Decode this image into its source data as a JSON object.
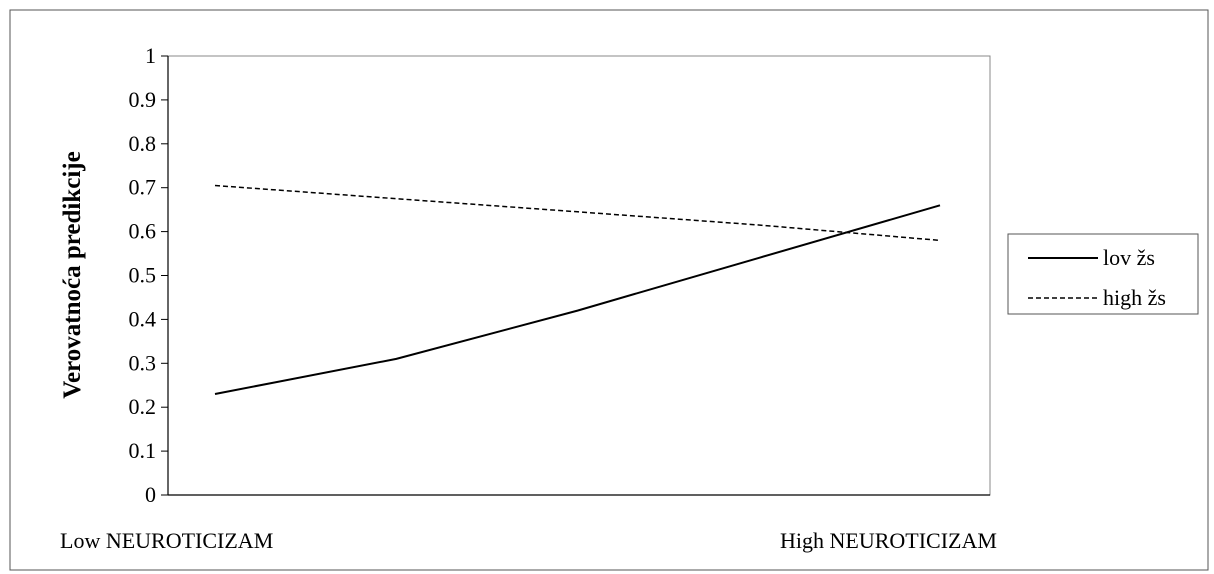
{
  "chart_data": {
    "type": "line",
    "title": "",
    "xlabel": "",
    "ylabel": "Verovatnoća predikcije",
    "ylim": [
      0,
      1
    ],
    "y_ticks": [
      "0",
      "0.1",
      "0.2",
      "0.3",
      "0.4",
      "0.5",
      "0.6",
      "0.7",
      "0.8",
      "0.9",
      "1"
    ],
    "categories": [
      "Low NEUROTICIZAM",
      "High NEUROTICIZAM"
    ],
    "x": [
      0,
      0.25,
      0.5,
      0.75,
      1
    ],
    "grid": false,
    "legend_position": "right",
    "series": [
      {
        "name": "lov žs",
        "style": "solid",
        "color": "#000000",
        "values": [
          0.23,
          0.31,
          0.42,
          0.54,
          0.66
        ]
      },
      {
        "name": "high žs",
        "style": "dashed",
        "color": "#000000",
        "values": [
          0.705,
          0.675,
          0.645,
          0.615,
          0.58
        ]
      }
    ]
  }
}
